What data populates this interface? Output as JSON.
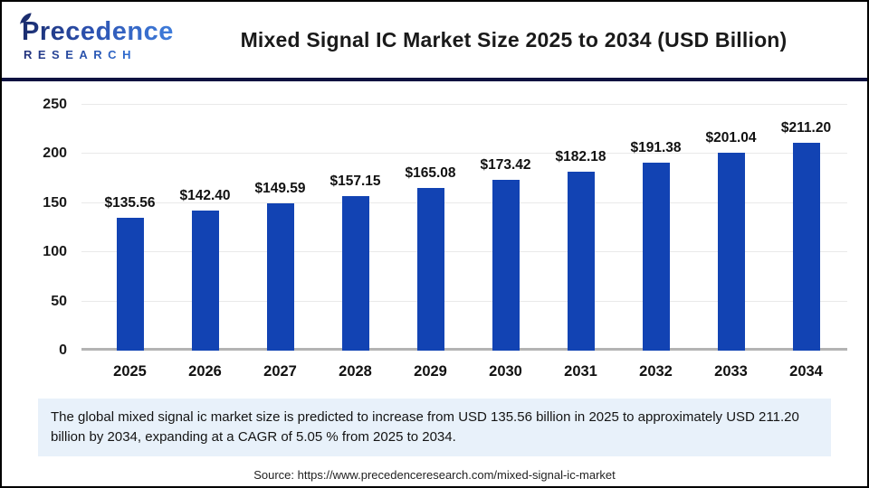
{
  "header": {
    "logo_brand": "Precedence",
    "logo_sub": "RESEARCH",
    "title": "Mixed Signal IC Market Size 2025 to 2034 (USD Billion)"
  },
  "chart_data": {
    "type": "bar",
    "title": "Mixed Signal IC Market Size 2025 to 2034 (USD Billion)",
    "categories": [
      "2025",
      "2026",
      "2027",
      "2028",
      "2029",
      "2030",
      "2031",
      "2032",
      "2033",
      "2034"
    ],
    "values": [
      135.56,
      142.4,
      149.59,
      157.15,
      165.08,
      173.42,
      182.18,
      191.38,
      201.04,
      211.2
    ],
    "value_labels": [
      "$135.56",
      "$142.40",
      "$149.59",
      "$157.15",
      "$165.08",
      "$173.42",
      "$182.18",
      "$191.38",
      "$201.04",
      "$211.20"
    ],
    "xlabel": "",
    "ylabel": "",
    "ylim": [
      0,
      250
    ],
    "yticks": [
      0,
      50,
      100,
      150,
      200,
      250
    ],
    "grid": true,
    "legend": false,
    "bar_color": "#1243b3"
  },
  "callout": {
    "text": "The global mixed signal ic market size is predicted to increase from USD 135.56 billion in 2025 to approximately USD 211.20 billion by 2034, expanding at a CAGR of 5.05 % from 2025 to 2034."
  },
  "source": {
    "text": "Source: https://www.precedenceresearch.com/mixed-signal-ic-market"
  }
}
